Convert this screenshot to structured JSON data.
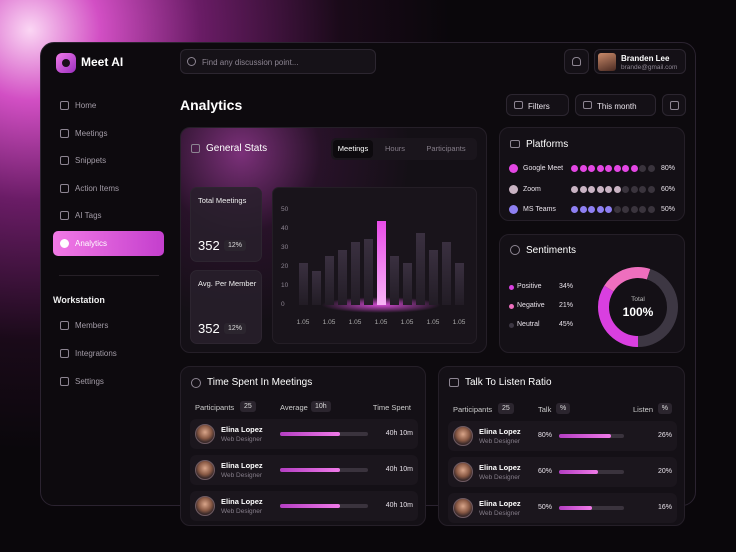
{
  "brand": "Meet AI",
  "search": {
    "placeholder": "Find any discussion point..."
  },
  "user": {
    "name": "Branden Lee",
    "email": "brande@gmail.com"
  },
  "nav": {
    "items": [
      "Home",
      "Meetings",
      "Snippets",
      "Action Items",
      "AI Tags",
      "Analytics"
    ],
    "active": 5
  },
  "workstation": {
    "title": "Workstation",
    "items": [
      "Members",
      "Integrations",
      "Settings"
    ]
  },
  "page_title": "Analytics",
  "toolbar": {
    "filters": "Filters",
    "period": "This month"
  },
  "general_stats": {
    "title": "General Stats",
    "tabs": [
      "Meetings",
      "Hours",
      "Participants"
    ],
    "active_tab": 0,
    "stats": [
      {
        "label": "Total Meetings",
        "value": 352,
        "change": "12%"
      },
      {
        "label": "Avg. Per Member",
        "value": 352,
        "change": "12%"
      }
    ],
    "chart_data": {
      "type": "bar",
      "categories": [
        "1.05",
        null,
        "1.05",
        null,
        "1.05",
        null,
        "1.05",
        null,
        "1.05",
        null,
        "1.05",
        null,
        "1.05"
      ],
      "values": [
        22,
        18,
        26,
        29,
        33,
        35,
        44,
        26,
        22,
        38,
        29,
        33,
        22
      ],
      "ylim": [
        0,
        50
      ],
      "yticks": [
        0,
        10,
        20,
        30,
        40,
        50
      ],
      "color": "#3a3040",
      "highlight": 6,
      "highlight_color": "#e84ce8"
    }
  },
  "platforms": {
    "title": "Platforms",
    "categories": [
      "Google Meet",
      "Zoom",
      "MS Teams"
    ],
    "values": [
      80,
      60,
      50
    ],
    "value_labels": [
      "80%",
      "60%",
      "50%"
    ],
    "colors": [
      "#e346e3",
      "#c9b3c3",
      "#8e7ff2"
    ],
    "xlim": [
      0,
      100
    ]
  },
  "sentiments": {
    "title": "Sentiments",
    "categories": [
      "Positive",
      "Negative",
      "Neutral"
    ],
    "values": [
      34,
      21,
      45
    ],
    "value_labels": [
      "34%",
      "21%",
      "45%"
    ],
    "colors": [
      "#d93fe0",
      "#ee6fbe",
      "#3d3743"
    ],
    "total": {
      "label": "Total",
      "value": 100,
      "value_label": "100%"
    }
  },
  "time_spent": {
    "title": "Time Spent In Meetings",
    "columns": {
      "participants": "Participants",
      "participants_count": 25,
      "average": "Average",
      "average_value": "10h",
      "time_spent": "Time Spent"
    },
    "rows": [
      {
        "name": "Elina Lopez",
        "role": "Web Designer",
        "progress": 68,
        "time": "40h 10m"
      },
      {
        "name": "Elina Lopez",
        "role": "Web Designer",
        "progress": 68,
        "time": "40h 10m"
      },
      {
        "name": "Elina Lopez",
        "role": "Web Designer",
        "progress": 68,
        "time": "40h 10m"
      }
    ]
  },
  "talk_listen": {
    "title": "Talk To Listen Ratio",
    "columns": {
      "participants": "Participants",
      "participants_count": 25,
      "talk": "Talk",
      "talk_unit": "%",
      "listen": "Listen",
      "listen_unit": "%"
    },
    "rows": [
      {
        "name": "Elina Lopez",
        "role": "Web Designer",
        "talk": 80,
        "talk_label": "80%",
        "listen": 26,
        "listen_label": "26%"
      },
      {
        "name": "Elina Lopez",
        "role": "Web Designer",
        "talk": 60,
        "talk_label": "60%",
        "listen": 20,
        "listen_label": "20%"
      },
      {
        "name": "Elina Lopez",
        "role": "Web Designer",
        "talk": 50,
        "talk_label": "50%",
        "listen": 16,
        "listen_label": "16%"
      }
    ]
  }
}
